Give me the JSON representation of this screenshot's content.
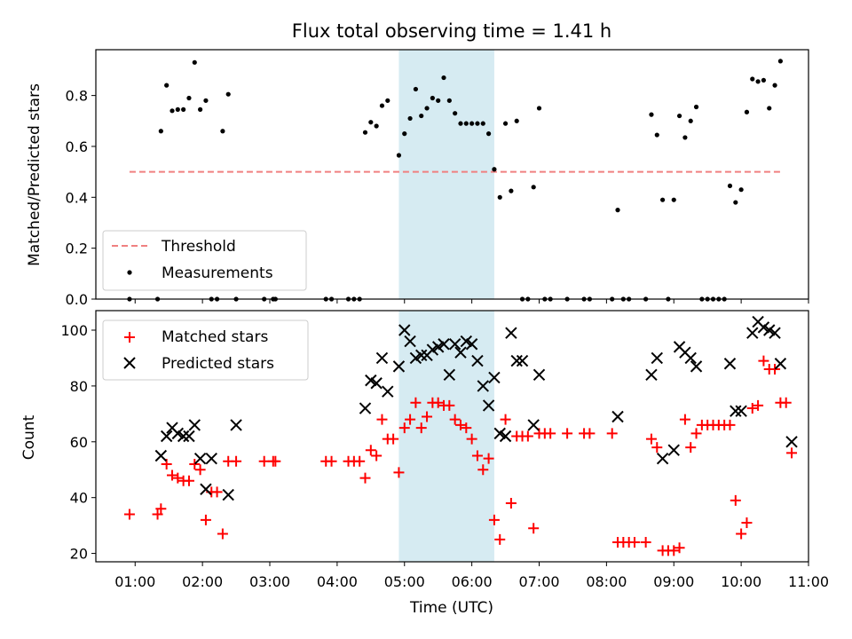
{
  "figure_title": "Flux total observing time = 1.41 h",
  "highlight_band": {
    "start": "04:55",
    "end": "06:20",
    "color": "#add8e6"
  },
  "chart_data": [
    {
      "type": "scatter",
      "ylabel": "Matched/Predicted stars",
      "ylim": [
        0,
        0.98
      ],
      "yticks": [
        0.0,
        0.2,
        0.4,
        0.6,
        0.8
      ],
      "xlim": [
        "00:25",
        "11:00"
      ],
      "legend_placement": "lower-left",
      "threshold": {
        "name": "Threshold",
        "value": 0.5,
        "x_start": "00:55",
        "x_end": "10:35",
        "color": "#f08080"
      },
      "series": [
        {
          "name": "Measurements",
          "color": "#000000",
          "points": [
            [
              "00:55",
              0
            ],
            [
              "01:20",
              0
            ],
            [
              "01:23",
              0.66
            ],
            [
              "01:28",
              0.84
            ],
            [
              "01:33",
              0.74
            ],
            [
              "01:38",
              0.745
            ],
            [
              "01:43",
              0.745
            ],
            [
              "01:48",
              0.79
            ],
            [
              "01:53",
              0.93
            ],
            [
              "01:58",
              0.745
            ],
            [
              "02:03",
              0.78
            ],
            [
              "02:08",
              0
            ],
            [
              "02:13",
              0
            ],
            [
              "02:18",
              0.66
            ],
            [
              "02:23",
              0.805
            ],
            [
              "02:30",
              0
            ],
            [
              "02:55",
              0
            ],
            [
              "03:03",
              0
            ],
            [
              "03:05",
              0
            ],
            [
              "03:50",
              0
            ],
            [
              "03:55",
              0
            ],
            [
              "04:10",
              0
            ],
            [
              "04:15",
              0
            ],
            [
              "04:20",
              0
            ],
            [
              "04:25",
              0.655
            ],
            [
              "04:30",
              0.695
            ],
            [
              "04:35",
              0.68
            ],
            [
              "04:40",
              0.76
            ],
            [
              "04:45",
              0.78
            ],
            [
              "04:55",
              0.565
            ],
            [
              "05:00",
              0.65
            ],
            [
              "05:05",
              0.71
            ],
            [
              "05:10",
              0.825
            ],
            [
              "05:15",
              0.72
            ],
            [
              "05:20",
              0.75
            ],
            [
              "05:25",
              0.79
            ],
            [
              "05:30",
              0.78
            ],
            [
              "05:35",
              0.87
            ],
            [
              "05:40",
              0.78
            ],
            [
              "05:45",
              0.73
            ],
            [
              "05:50",
              0.69
            ],
            [
              "05:55",
              0.69
            ],
            [
              "06:00",
              0.69
            ],
            [
              "06:05",
              0.69
            ],
            [
              "06:10",
              0.69
            ],
            [
              "06:15",
              0.65
            ],
            [
              "06:20",
              0.51
            ],
            [
              "06:25",
              0.4
            ],
            [
              "06:30",
              0.69
            ],
            [
              "06:35",
              0.425
            ],
            [
              "06:40",
              0.7
            ],
            [
              "06:45",
              0
            ],
            [
              "06:50",
              0
            ],
            [
              "06:55",
              0.44
            ],
            [
              "07:00",
              0.75
            ],
            [
              "07:05",
              0
            ],
            [
              "07:10",
              0
            ],
            [
              "07:25",
              0
            ],
            [
              "07:40",
              0
            ],
            [
              "07:45",
              0
            ],
            [
              "08:05",
              0
            ],
            [
              "08:10",
              0.35
            ],
            [
              "08:15",
              0
            ],
            [
              "08:20",
              0
            ],
            [
              "08:35",
              0
            ],
            [
              "08:40",
              0.725
            ],
            [
              "08:45",
              0.645
            ],
            [
              "08:50",
              0.39
            ],
            [
              "08:55",
              0
            ],
            [
              "09:00",
              0.39
            ],
            [
              "09:05",
              0.72
            ],
            [
              "09:10",
              0.635
            ],
            [
              "09:15",
              0.7
            ],
            [
              "09:20",
              0.755
            ],
            [
              "09:25",
              0
            ],
            [
              "09:30",
              0
            ],
            [
              "09:35",
              0
            ],
            [
              "09:40",
              0
            ],
            [
              "09:45",
              0
            ],
            [
              "09:50",
              0.445
            ],
            [
              "09:55",
              0.38
            ],
            [
              "10:00",
              0.43
            ],
            [
              "10:05",
              0.735
            ],
            [
              "10:10",
              0.865
            ],
            [
              "10:15",
              0.855
            ],
            [
              "10:20",
              0.86
            ],
            [
              "10:25",
              0.75
            ],
            [
              "10:30",
              0.84
            ],
            [
              "10:35",
              0.935
            ]
          ]
        }
      ]
    },
    {
      "type": "scatter",
      "ylabel": "Count",
      "xlabel": "Time (UTC)",
      "ylim": [
        17,
        107
      ],
      "yticks": [
        20,
        40,
        60,
        80,
        100
      ],
      "xlim": [
        "00:25",
        "11:00"
      ],
      "xticks": [
        "01:00",
        "02:00",
        "03:00",
        "04:00",
        "05:00",
        "06:00",
        "07:00",
        "08:00",
        "09:00",
        "10:00",
        "11:00"
      ],
      "legend_placement": "upper-left",
      "series": [
        {
          "name": "Matched stars",
          "marker": "plus",
          "color": "#ff0000",
          "points": [
            [
              "00:55",
              34
            ],
            [
              "01:20",
              34
            ],
            [
              "01:23",
              36
            ],
            [
              "01:28",
              52
            ],
            [
              "01:33",
              48
            ],
            [
              "01:38",
              47
            ],
            [
              "01:43",
              46
            ],
            [
              "01:48",
              46
            ],
            [
              "01:53",
              52
            ],
            [
              "01:58",
              50
            ],
            [
              "02:03",
              32
            ],
            [
              "02:08",
              42
            ],
            [
              "02:13",
              42
            ],
            [
              "02:18",
              27
            ],
            [
              "02:23",
              53
            ],
            [
              "02:30",
              53
            ],
            [
              "02:55",
              53
            ],
            [
              "03:03",
              53
            ],
            [
              "03:05",
              53
            ],
            [
              "03:50",
              53
            ],
            [
              "03:55",
              53
            ],
            [
              "04:10",
              53
            ],
            [
              "04:15",
              53
            ],
            [
              "04:20",
              53
            ],
            [
              "04:25",
              47
            ],
            [
              "04:30",
              57
            ],
            [
              "04:35",
              55
            ],
            [
              "04:40",
              68
            ],
            [
              "04:45",
              61
            ],
            [
              "04:50",
              61
            ],
            [
              "04:55",
              49
            ],
            [
              "05:00",
              65
            ],
            [
              "05:05",
              68
            ],
            [
              "05:10",
              74
            ],
            [
              "05:15",
              65
            ],
            [
              "05:20",
              69
            ],
            [
              "05:25",
              74
            ],
            [
              "05:30",
              74
            ],
            [
              "05:35",
              73
            ],
            [
              "05:40",
              73
            ],
            [
              "05:45",
              68
            ],
            [
              "05:50",
              66
            ],
            [
              "05:55",
              65
            ],
            [
              "06:00",
              61
            ],
            [
              "06:05",
              55
            ],
            [
              "06:10",
              50
            ],
            [
              "06:15",
              54
            ],
            [
              "06:20",
              32
            ],
            [
              "06:25",
              25
            ],
            [
              "06:30",
              68
            ],
            [
              "06:35",
              38
            ],
            [
              "06:40",
              62
            ],
            [
              "06:45",
              62
            ],
            [
              "06:50",
              62
            ],
            [
              "06:55",
              29
            ],
            [
              "07:00",
              63
            ],
            [
              "07:05",
              63
            ],
            [
              "07:10",
              63
            ],
            [
              "07:25",
              63
            ],
            [
              "07:40",
              63
            ],
            [
              "07:45",
              63
            ],
            [
              "08:05",
              63
            ],
            [
              "08:10",
              24
            ],
            [
              "08:15",
              24
            ],
            [
              "08:20",
              24
            ],
            [
              "08:25",
              24
            ],
            [
              "08:35",
              24
            ],
            [
              "08:40",
              61
            ],
            [
              "08:45",
              58
            ],
            [
              "08:50",
              21
            ],
            [
              "08:55",
              21
            ],
            [
              "09:00",
              21
            ],
            [
              "09:05",
              22
            ],
            [
              "09:10",
              68
            ],
            [
              "09:15",
              58
            ],
            [
              "09:20",
              63
            ],
            [
              "09:25",
              66
            ],
            [
              "09:30",
              66
            ],
            [
              "09:35",
              66
            ],
            [
              "09:40",
              66
            ],
            [
              "09:45",
              66
            ],
            [
              "09:50",
              66
            ],
            [
              "09:55",
              39
            ],
            [
              "10:00",
              27
            ],
            [
              "10:05",
              31
            ],
            [
              "10:10",
              72
            ],
            [
              "10:15",
              73
            ],
            [
              "10:20",
              89
            ],
            [
              "10:25",
              86
            ],
            [
              "10:30",
              86
            ],
            [
              "10:35",
              74
            ],
            [
              "10:40",
              74
            ],
            [
              "10:45",
              56
            ]
          ]
        },
        {
          "name": "Predicted stars",
          "marker": "x",
          "color": "#000000",
          "points": [
            [
              "01:23",
              55
            ],
            [
              "01:28",
              62
            ],
            [
              "01:33",
              65
            ],
            [
              "01:38",
              63
            ],
            [
              "01:43",
              62
            ],
            [
              "01:48",
              62
            ],
            [
              "01:53",
              66
            ],
            [
              "01:58",
              54
            ],
            [
              "02:03",
              43
            ],
            [
              "02:08",
              54
            ],
            [
              "02:23",
              41
            ],
            [
              "02:30",
              66
            ],
            [
              "04:25",
              72
            ],
            [
              "04:30",
              82
            ],
            [
              "04:35",
              81
            ],
            [
              "04:40",
              90
            ],
            [
              "04:45",
              78
            ],
            [
              "04:55",
              87
            ],
            [
              "05:00",
              100
            ],
            [
              "05:05",
              96
            ],
            [
              "05:10",
              90
            ],
            [
              "05:15",
              91
            ],
            [
              "05:20",
              91
            ],
            [
              "05:25",
              93
            ],
            [
              "05:30",
              94
            ],
            [
              "05:35",
              95
            ],
            [
              "05:40",
              84
            ],
            [
              "05:45",
              95
            ],
            [
              "05:50",
              92
            ],
            [
              "05:55",
              96
            ],
            [
              "06:00",
              95
            ],
            [
              "06:05",
              89
            ],
            [
              "06:10",
              80
            ],
            [
              "06:15",
              73
            ],
            [
              "06:20",
              83
            ],
            [
              "06:25",
              63
            ],
            [
              "06:30",
              62
            ],
            [
              "06:35",
              99
            ],
            [
              "06:40",
              89
            ],
            [
              "06:45",
              89
            ],
            [
              "06:55",
              66
            ],
            [
              "07:00",
              84
            ],
            [
              "08:10",
              69
            ],
            [
              "08:40",
              84
            ],
            [
              "08:45",
              90
            ],
            [
              "08:50",
              54
            ],
            [
              "09:00",
              57
            ],
            [
              "09:05",
              94
            ],
            [
              "09:10",
              92
            ],
            [
              "09:15",
              90
            ],
            [
              "09:20",
              87
            ],
            [
              "09:50",
              88
            ],
            [
              "09:55",
              71
            ],
            [
              "10:00",
              71
            ],
            [
              "10:10",
              99
            ],
            [
              "10:15",
              103
            ],
            [
              "10:20",
              101
            ],
            [
              "10:25",
              100
            ],
            [
              "10:30",
              99
            ],
            [
              "10:35",
              88
            ],
            [
              "10:45",
              60
            ]
          ]
        }
      ]
    }
  ]
}
